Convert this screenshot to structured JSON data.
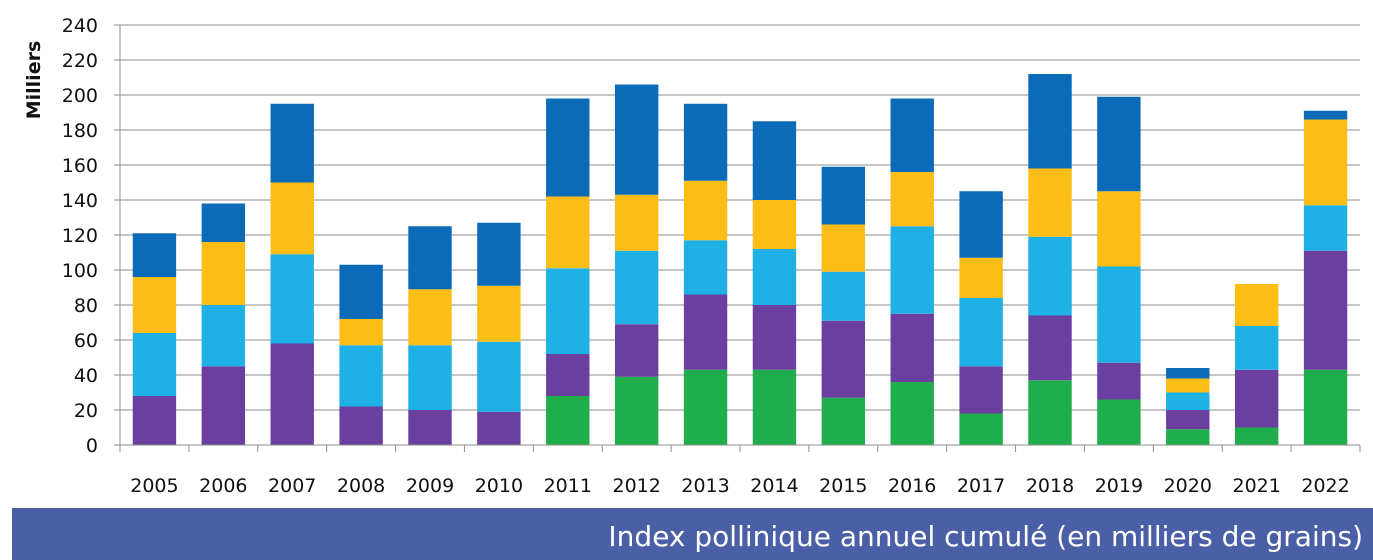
{
  "chart_data": {
    "type": "bar",
    "stacked": true,
    "ylabel": "Milliers",
    "ylim": [
      0,
      240
    ],
    "ytick_step": 20,
    "grid": true,
    "legend": "none",
    "categories": [
      "2005",
      "2006",
      "2007",
      "2008",
      "2009",
      "2010",
      "2011",
      "2012",
      "2013",
      "2014",
      "2015",
      "2016",
      "2017",
      "2018",
      "2019",
      "2020",
      "2021",
      "2022"
    ],
    "series": [
      {
        "color": "#1fae4b",
        "values": [
          0,
          0,
          0,
          0,
          0,
          0,
          28,
          39,
          43,
          43,
          27,
          36,
          18,
          37,
          26,
          9,
          10,
          43
        ]
      },
      {
        "color": "#6a3fa0",
        "values": [
          28,
          45,
          58,
          22,
          20,
          19,
          24,
          30,
          43,
          37,
          44,
          39,
          27,
          37,
          21,
          11,
          33,
          68
        ]
      },
      {
        "color": "#1fb0e6",
        "values": [
          36,
          35,
          51,
          35,
          37,
          40,
          49,
          42,
          31,
          32,
          28,
          50,
          39,
          45,
          55,
          10,
          25,
          26
        ]
      },
      {
        "color": "#fbbd16",
        "values": [
          32,
          36,
          41,
          15,
          32,
          32,
          41,
          32,
          34,
          28,
          27,
          31,
          23,
          39,
          43,
          8,
          24,
          49
        ]
      },
      {
        "color": "#0b6bb8",
        "values": [
          25,
          22,
          45,
          31,
          36,
          36,
          56,
          63,
          44,
          45,
          33,
          42,
          38,
          54,
          54,
          6,
          0,
          5
        ]
      }
    ]
  },
  "caption": "Index pollinique annuel cumulé (en milliers de grains)"
}
